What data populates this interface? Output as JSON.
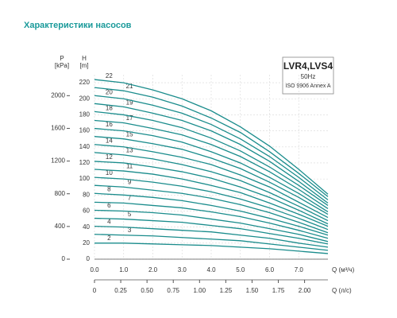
{
  "chart_data": {
    "type": "line",
    "title": "Характеристики насосов",
    "model": "LVR4,LVS4",
    "frequency": "50Hz",
    "standard": "ISO 9906 Annex A",
    "p_axis_label": "P",
    "p_axis_unit": "[kPa]",
    "y_axis_label": "H",
    "y_axis_unit": "[m]",
    "x_axis_label": "Q (м³/ч)",
    "x2_axis_label": "Q (л/с)",
    "color": "#1a8c8c",
    "grid": true,
    "x": [
      0,
      1,
      2,
      3,
      4,
      5,
      6,
      7,
      8
    ],
    "xlim": [
      0,
      8
    ],
    "xticks": [
      {
        "value": 0,
        "label": "0.0"
      },
      {
        "value": 1,
        "label": "1.0"
      },
      {
        "value": 2,
        "label": "2.0"
      },
      {
        "value": 3,
        "label": "3.0"
      },
      {
        "value": 4,
        "label": "4.0"
      },
      {
        "value": 5,
        "label": "5.0"
      },
      {
        "value": 6,
        "label": "6.0"
      },
      {
        "value": 7,
        "label": "7.0"
      }
    ],
    "x2lim": [
      0,
      2.222
    ],
    "x2ticks": [
      0,
      0.25,
      {
        "value": 0.5,
        "label": "0.50"
      },
      0.75,
      {
        "value": 1,
        "label": "1.00"
      },
      1.25,
      {
        "value": 1.5,
        "label": "1.50"
      },
      1.75,
      {
        "value": 2,
        "label": "2.00"
      }
    ],
    "ylim": [
      0,
      230
    ],
    "yticks": [
      0,
      20,
      40,
      60,
      80,
      100,
      120,
      140,
      160,
      180,
      200,
      220
    ],
    "plim": [
      0,
      2256
    ],
    "pticks": [
      0,
      400,
      800,
      1200,
      1600,
      2000
    ],
    "series": [
      {
        "name": "2",
        "values": [
          20,
          20,
          19,
          18,
          17,
          15,
          13,
          10,
          7
        ]
      },
      {
        "name": "3",
        "values": [
          31,
          30,
          29,
          27,
          25,
          23,
          19,
          15,
          11
        ]
      },
      {
        "name": "4",
        "values": [
          41,
          40,
          38,
          36,
          34,
          30,
          26,
          20,
          15
        ]
      },
      {
        "name": "5",
        "values": [
          51,
          50,
          48,
          46,
          42,
          38,
          32,
          26,
          19
        ]
      },
      {
        "name": "6",
        "values": [
          61,
          60,
          58,
          55,
          50,
          45,
          38,
          31,
          22
        ]
      },
      {
        "name": "7",
        "values": [
          71,
          70,
          67,
          64,
          59,
          53,
          45,
          36,
          26
        ]
      },
      {
        "name": "8",
        "values": [
          82,
          80,
          77,
          73,
          67,
          60,
          51,
          41,
          30
        ]
      },
      {
        "name": "9",
        "values": [
          92,
          90,
          86,
          82,
          76,
          68,
          58,
          46,
          33
        ]
      },
      {
        "name": "10",
        "values": [
          102,
          100,
          96,
          91,
          84,
          75,
          64,
          51,
          37
        ]
      },
      {
        "name": "11",
        "values": [
          112,
          110,
          106,
          100,
          92,
          83,
          70,
          56,
          41
        ]
      },
      {
        "name": "12",
        "values": [
          122,
          120,
          115,
          109,
          101,
          90,
          77,
          61,
          44
        ]
      },
      {
        "name": "13",
        "values": [
          133,
          130,
          125,
          118,
          109,
          98,
          83,
          66,
          48
        ]
      },
      {
        "name": "14",
        "values": [
          143,
          140,
          134,
          127,
          118,
          105,
          90,
          71,
          52
        ]
      },
      {
        "name": "15",
        "values": [
          153,
          150,
          144,
          137,
          126,
          113,
          96,
          77,
          56
        ]
      },
      {
        "name": "16",
        "values": [
          163,
          160,
          154,
          146,
          134,
          120,
          102,
          82,
          59
        ]
      },
      {
        "name": "17",
        "values": [
          173,
          170,
          163,
          155,
          143,
          128,
          109,
          87,
          63
        ]
      },
      {
        "name": "18",
        "values": [
          184,
          180,
          173,
          164,
          151,
          135,
          115,
          92,
          67
        ]
      },
      {
        "name": "19",
        "values": [
          194,
          190,
          182,
          173,
          160,
          143,
          122,
          97,
          70
        ]
      },
      {
        "name": "20",
        "values": [
          204,
          200,
          192,
          182,
          168,
          150,
          128,
          102,
          74
        ]
      },
      {
        "name": "21",
        "values": [
          214,
          210,
          202,
          191,
          176,
          158,
          134,
          107,
          78
        ]
      },
      {
        "name": "22",
        "values": [
          224,
          220,
          211,
          200,
          185,
          165,
          141,
          112,
          81
        ]
      }
    ]
  }
}
